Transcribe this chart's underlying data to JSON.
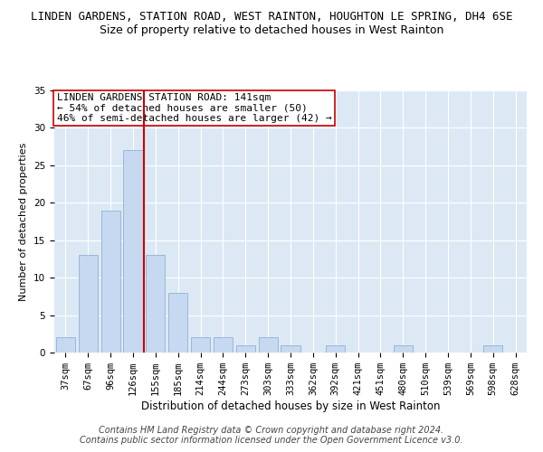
{
  "title": "LINDEN GARDENS, STATION ROAD, WEST RAINTON, HOUGHTON LE SPRING, DH4 6SE",
  "subtitle": "Size of property relative to detached houses in West Rainton",
  "xlabel": "Distribution of detached houses by size in West Rainton",
  "ylabel": "Number of detached properties",
  "categories": [
    "37sqm",
    "67sqm",
    "96sqm",
    "126sqm",
    "155sqm",
    "185sqm",
    "214sqm",
    "244sqm",
    "273sqm",
    "303sqm",
    "333sqm",
    "362sqm",
    "392sqm",
    "421sqm",
    "451sqm",
    "480sqm",
    "510sqm",
    "539sqm",
    "569sqm",
    "598sqm",
    "628sqm"
  ],
  "values": [
    2,
    13,
    19,
    27,
    13,
    8,
    2,
    2,
    1,
    2,
    1,
    0,
    1,
    0,
    0,
    1,
    0,
    0,
    0,
    1,
    0
  ],
  "bar_color": "#c6d9f0",
  "bar_edge_color": "#9ab7d8",
  "vline_pos": 3.5,
  "vline_color": "#cc0000",
  "ylim": [
    0,
    35
  ],
  "yticks": [
    0,
    5,
    10,
    15,
    20,
    25,
    30,
    35
  ],
  "annotation_lines": [
    "LINDEN GARDENS STATION ROAD: 141sqm",
    "← 54% of detached houses are smaller (50)",
    "46% of semi-detached houses are larger (42) →"
  ],
  "annotation_box_color": "#ffffff",
  "annotation_box_edge_color": "#cc0000",
  "footer_line1": "Contains HM Land Registry data © Crown copyright and database right 2024.",
  "footer_line2": "Contains public sector information licensed under the Open Government Licence v3.0.",
  "plot_bg_color": "#dce9f5",
  "title_fontsize": 9,
  "subtitle_fontsize": 9,
  "xlabel_fontsize": 8.5,
  "ylabel_fontsize": 8,
  "tick_fontsize": 7.5,
  "footer_fontsize": 7,
  "annotation_fontsize": 8
}
